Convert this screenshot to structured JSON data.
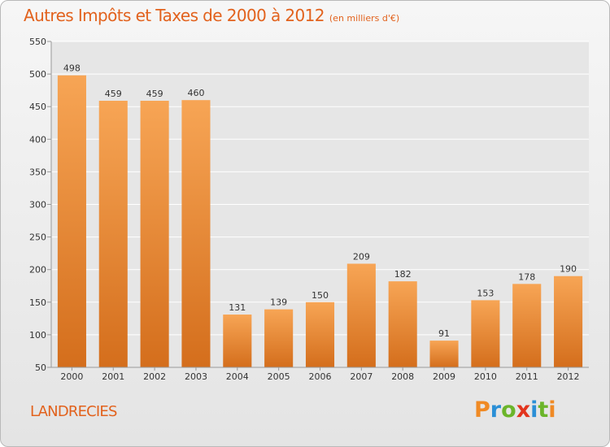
{
  "title": "Autres Impôts et Taxes de 2000 à 2012",
  "unit_note": "(en milliers d'€)",
  "commune": "LANDRECIES",
  "logo": {
    "text": "Proxiti",
    "letters": [
      "P",
      "r",
      "o",
      "x",
      "i",
      "t",
      "i"
    ],
    "colors": [
      "#f08a24",
      "#2a8fd6",
      "#6bb52a",
      "#e2341d",
      "#2a8fd6",
      "#6bb52a",
      "#f08a24"
    ]
  },
  "colors": {
    "accent": "#e2621d",
    "bar_top": "#f7a555",
    "bar_bottom": "#d46e1c",
    "grid": "#ffffff"
  },
  "chart_data": {
    "type": "bar",
    "categories": [
      "2000",
      "2001",
      "2002",
      "2003",
      "2004",
      "2005",
      "2006",
      "2007",
      "2008",
      "2009",
      "2010",
      "2011",
      "2012"
    ],
    "values": [
      498,
      459,
      459,
      460,
      131,
      139,
      150,
      209,
      182,
      91,
      153,
      178,
      190
    ],
    "ylim": [
      50,
      550
    ],
    "yticks": [
      50,
      100,
      150,
      200,
      250,
      300,
      350,
      400,
      450,
      500,
      550
    ],
    "grid": true,
    "xlabel": "",
    "ylabel": ""
  }
}
